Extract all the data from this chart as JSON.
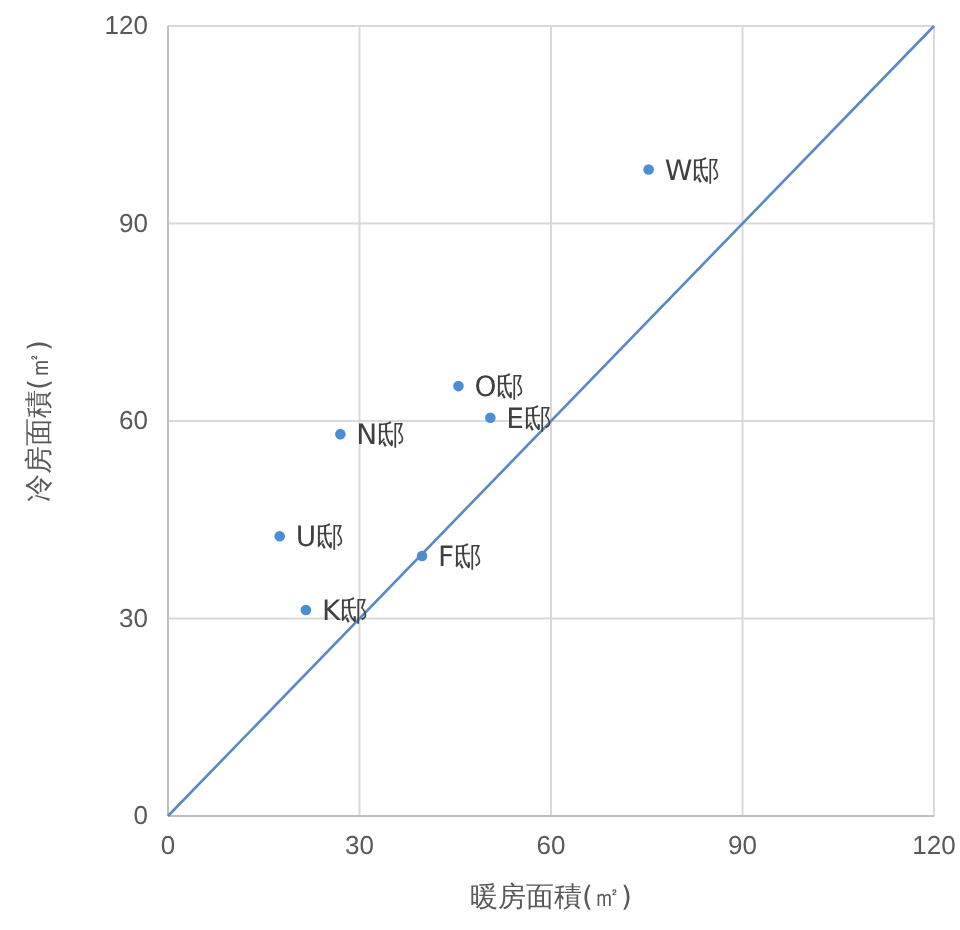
{
  "chart_data": {
    "type": "scatter",
    "xlabel": "暖房面積(㎡)",
    "ylabel": "冷房面積(㎡)",
    "xlim": [
      0,
      120
    ],
    "ylim": [
      0,
      120
    ],
    "xticks": [
      0,
      30,
      60,
      90,
      120
    ],
    "yticks": [
      0,
      30,
      60,
      90,
      120
    ],
    "grid": true,
    "series": [
      {
        "marker": "circle",
        "color": "#4a8fd6",
        "x": [
          75.3,
          45.5,
          50.5,
          27,
          17.5,
          21.6,
          39.8
        ],
        "values": [
          98.2,
          65.3,
          60.5,
          58,
          42.5,
          31.3,
          39.5
        ]
      },
      {
        "type": "line",
        "color": "#5b87c5",
        "x": [
          0,
          120
        ],
        "values": [
          0,
          120
        ]
      }
    ],
    "annotations": [
      {
        "text": "W邸",
        "x": 75.3,
        "y": 98.2
      },
      {
        "text": "O邸",
        "x": 45.5,
        "y": 65.3
      },
      {
        "text": "E邸",
        "x": 50.5,
        "y": 60.5
      },
      {
        "text": "N邸",
        "x": 27,
        "y": 58
      },
      {
        "text": "U邸",
        "x": 17.5,
        "y": 42.5
      },
      {
        "text": "K邸",
        "x": 21.6,
        "y": 31.3
      },
      {
        "text": "F邸",
        "x": 39.8,
        "y": 39.5
      }
    ]
  }
}
